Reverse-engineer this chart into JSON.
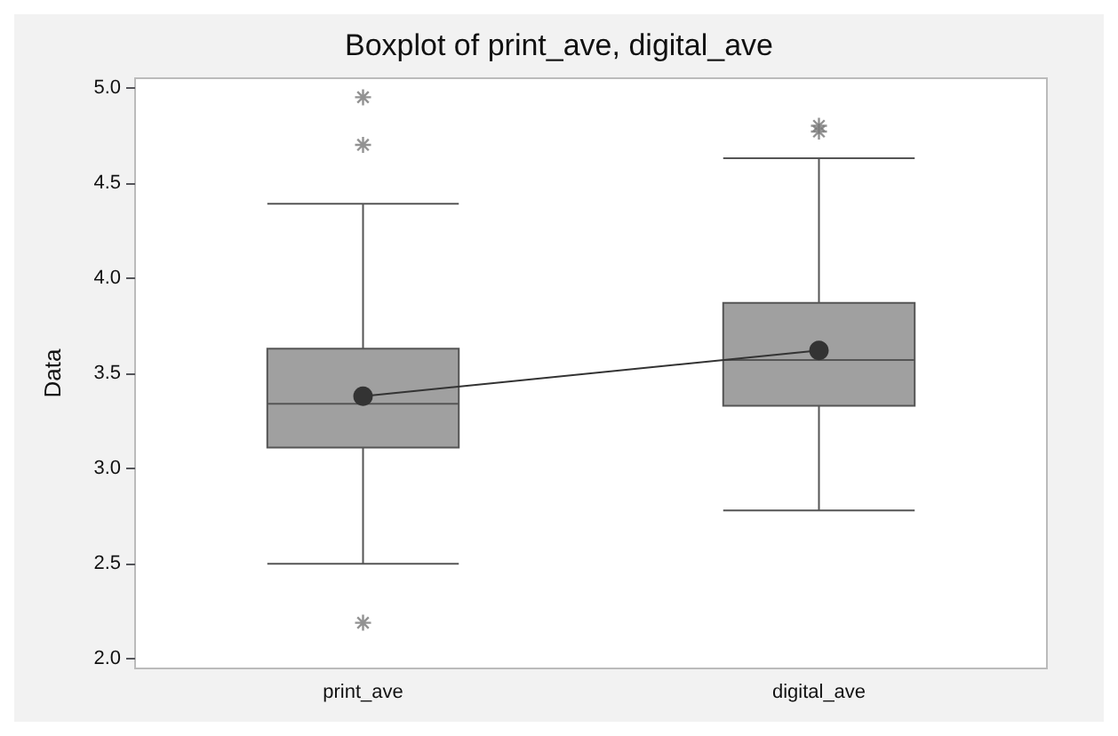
{
  "chart_data": {
    "type": "box",
    "title": "Boxplot of print_ave, digital_ave",
    "ylabel": "Data",
    "categories": [
      "print_ave",
      "digital_ave"
    ],
    "color": "#a0a0a0",
    "boxes": [
      {
        "low": 2.5,
        "q1": 3.11,
        "median": 3.34,
        "q3": 3.63,
        "high": 4.39,
        "outliers": [
          4.95,
          4.7,
          2.19
        ]
      },
      {
        "low": 2.78,
        "q1": 3.33,
        "median": 3.57,
        "q3": 3.87,
        "high": 4.63,
        "outliers": [
          4.8,
          4.77
        ]
      }
    ],
    "series": [
      {
        "type": "line",
        "color": "#333333",
        "marker": "circle",
        "values": [
          3.38,
          3.62
        ]
      }
    ],
    "ylim": [
      1.95,
      5.05
    ],
    "yticks": [
      {
        "value": 2,
        "label": "2.0"
      },
      {
        "value": 2.5,
        "label": "2.5"
      },
      {
        "value": 3,
        "label": "3.0"
      },
      {
        "value": 3.5,
        "label": "3.5"
      },
      {
        "value": 4,
        "label": "4.0"
      },
      {
        "value": 4.5,
        "label": "4.5"
      },
      {
        "value": 5,
        "label": "5.0"
      }
    ],
    "grid": false
  }
}
